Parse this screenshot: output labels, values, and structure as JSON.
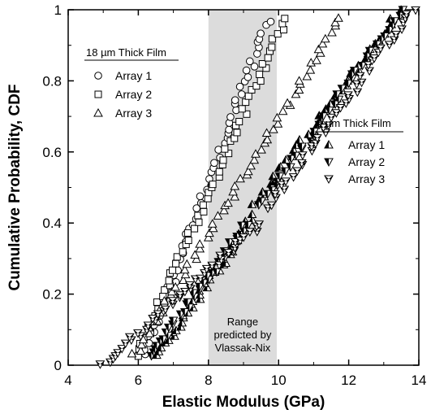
{
  "chart_data": {
    "type": "scatter",
    "xlabel": "Elastic Modulus (GPa)",
    "ylabel": "Cumulative Probability, CDF",
    "xlim": [
      4,
      14
    ],
    "ylim": [
      0,
      1
    ],
    "xticks": [
      "4",
      "6",
      "8",
      "10",
      "12",
      "14"
    ],
    "yticks": [
      "0",
      "0.2",
      "0.4",
      "0.6",
      "0.8",
      "1"
    ],
    "grid": false,
    "shaded_range": {
      "x": [
        8.0,
        9.95
      ],
      "color": "#dcdcdc"
    },
    "annotation": [
      "Range",
      "predicted by",
      "Vlassak-Nix"
    ],
    "legends": [
      {
        "title": "18 µm Thick Film",
        "placement": "upper-left",
        "entries": [
          {
            "label": "Array 1",
            "marker": "circle-open"
          },
          {
            "label": "Array 2",
            "marker": "square-open"
          },
          {
            "label": "Array 3",
            "marker": "triangle-up-open"
          }
        ]
      },
      {
        "title": "5 µm Thick Film",
        "placement": "middle-right",
        "entries": [
          {
            "label": "Array 1",
            "marker": "triangle-up-half"
          },
          {
            "label": "Array 2",
            "marker": "triangle-down-half"
          },
          {
            "label": "Array 3",
            "marker": "triangle-down-bowtie"
          }
        ]
      }
    ],
    "series": [
      {
        "film": "18",
        "legend_label": "Array 1",
        "marker": "circle-open",
        "ranges": [
          [
            6.2,
            0.03,
            9.7,
            0.97
          ]
        ],
        "points": 60
      },
      {
        "film": "18",
        "legend_label": "Array 2",
        "marker": "square-open",
        "ranges": [
          [
            6.0,
            0.03,
            10.2,
            0.98
          ]
        ],
        "points": 60
      },
      {
        "film": "18",
        "legend_label": "Array 3",
        "marker": "triangle-up-open",
        "ranges": [
          [
            5.9,
            0.03,
            11.8,
            0.98
          ]
        ],
        "points": 65
      },
      {
        "film": "5",
        "legend_label": "Array 1",
        "marker": "triangle-up-half",
        "ranges": [
          [
            6.6,
            0.03,
            9.3,
            0.42
          ],
          [
            9.3,
            0.45,
            13.5,
            1.0
          ]
        ],
        "points": 80
      },
      {
        "film": "5",
        "legend_label": "Array 2",
        "marker": "triangle-down-half",
        "ranges": [
          [
            6.4,
            0.03,
            9.1,
            0.4
          ],
          [
            9.5,
            0.45,
            13.5,
            1.0
          ]
        ],
        "points": 80
      },
      {
        "film": "5",
        "legend_label": "Array 3",
        "marker": "triangle-down-bowtie",
        "ranges": [
          [
            5.0,
            0.0,
            9.5,
            0.4
          ],
          [
            9.7,
            0.44,
            13.8,
            1.0
          ]
        ],
        "points": 85
      }
    ]
  }
}
